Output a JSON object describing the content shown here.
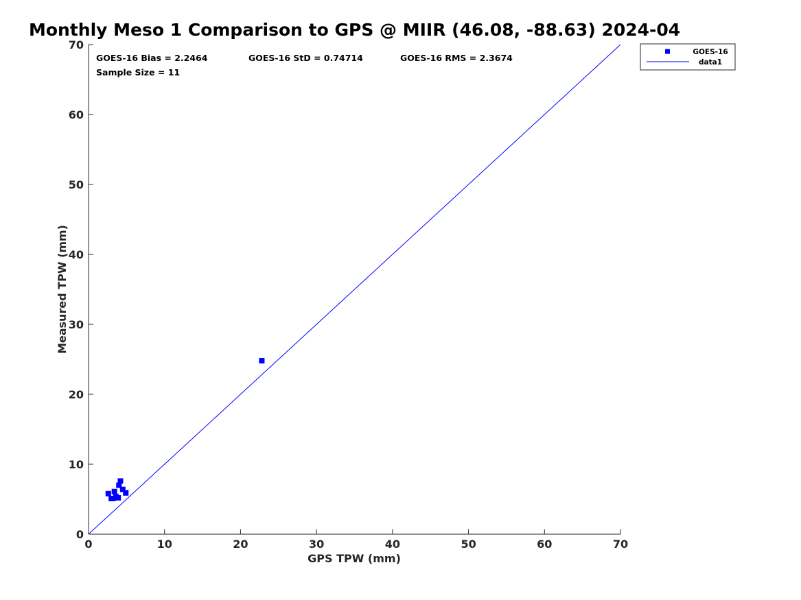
{
  "chart_data": {
    "type": "scatter",
    "title": "Monthly Meso 1 Comparison to GPS @ MIIR (46.08, -88.63) 2024-04",
    "xlabel": "GPS TPW (mm)",
    "ylabel": "Measured TPW (mm)",
    "xlim": [
      0,
      70
    ],
    "ylim": [
      0,
      70
    ],
    "xticks": [
      "0",
      "10",
      "20",
      "30",
      "40",
      "50",
      "60",
      "70"
    ],
    "yticks": [
      "0",
      "10",
      "20",
      "30",
      "40",
      "50",
      "60",
      "70"
    ],
    "grid": false,
    "legend_position": "outside top-right",
    "stats": {
      "bias": "GOES-16 Bias = 2.2464",
      "std": "GOES-16 StD = 0.74714",
      "rms": "GOES-16 RMS = 2.3674",
      "sample": "Sample Size = 11"
    },
    "series": [
      {
        "name": "GOES-16",
        "type": "scatter",
        "marker": "square",
        "color": "#0000ff",
        "x": [
          2.6,
          3.0,
          3.2,
          3.4,
          3.6,
          3.9,
          4.0,
          4.2,
          4.5,
          4.9,
          22.8
        ],
        "y": [
          5.8,
          5.1,
          5.1,
          6.1,
          5.4,
          5.2,
          7.0,
          7.6,
          6.4,
          5.9,
          24.8
        ]
      },
      {
        "name": "data1",
        "type": "line",
        "color": "#0000ff",
        "x": [
          0,
          70
        ],
        "y": [
          0,
          70
        ]
      }
    ]
  }
}
